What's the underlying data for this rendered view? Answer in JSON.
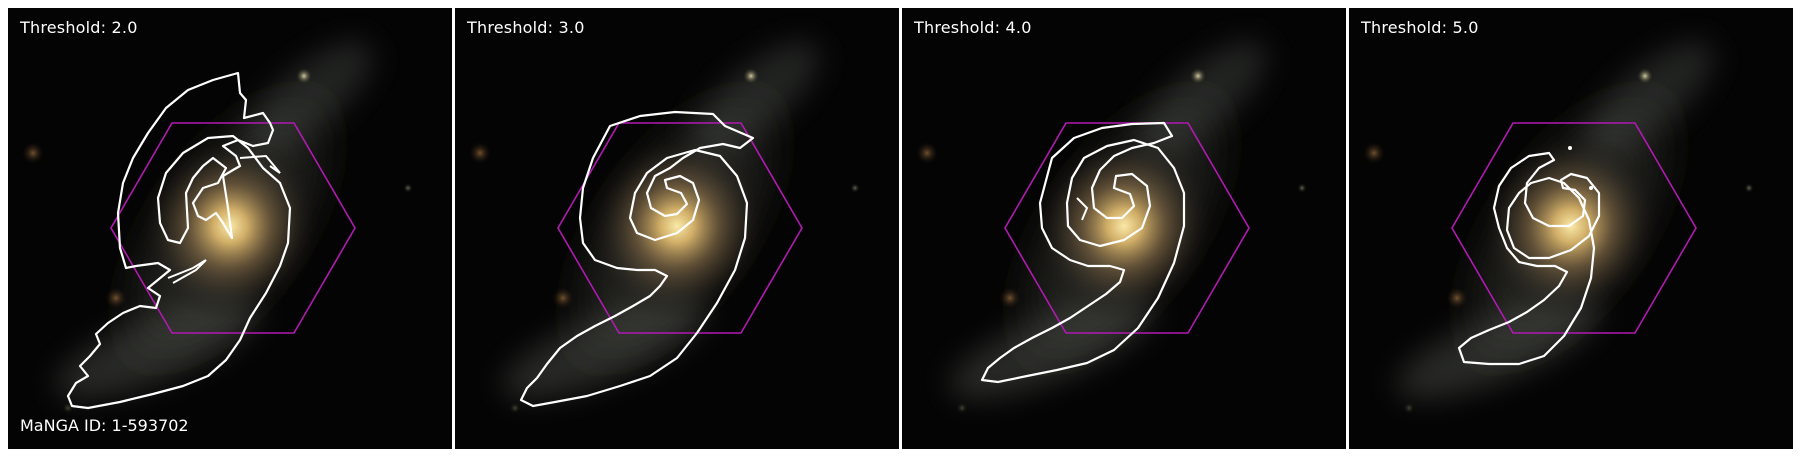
{
  "panels": [
    {
      "threshold_label": "Threshold: 2.0"
    },
    {
      "threshold_label": "Threshold: 3.0"
    },
    {
      "threshold_label": "Threshold: 4.0"
    },
    {
      "threshold_label": "Threshold: 5.0"
    }
  ],
  "manga_id_label": "MaNGA ID: 1-593702",
  "colors": {
    "background": "#040404",
    "contour": "#ffffff",
    "ifu_hexagon": "#b01ab0",
    "galaxy_core": "#f0d890",
    "galaxy_arms": "#8a8a78"
  },
  "icons": {
    "contour": "spiral-contour-outline",
    "footprint": "hexagon-footprint-outline"
  }
}
